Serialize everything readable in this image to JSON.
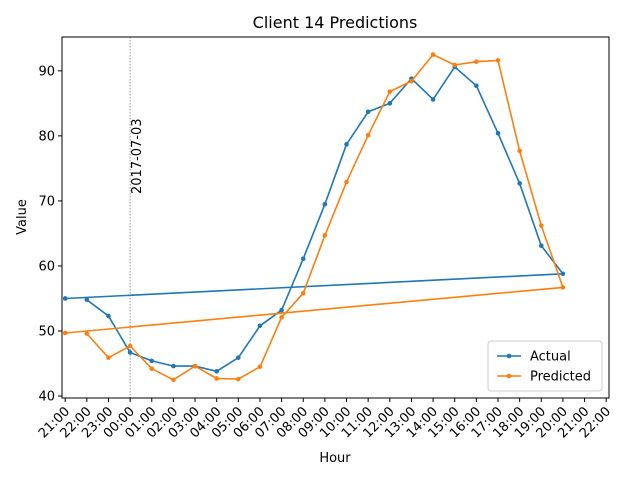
{
  "chart_data": {
    "type": "line",
    "title": "Client 14 Predictions",
    "xlabel": "Hour",
    "ylabel": "Value",
    "ylim": [
      39.7,
      95.2
    ],
    "yticks": [
      40,
      50,
      60,
      70,
      80,
      90
    ],
    "xtick_labels": [
      "21:00",
      "22:00",
      "23:00",
      "00:00",
      "01:00",
      "02:00",
      "03:00",
      "04:00",
      "05:00",
      "06:00",
      "07:00",
      "08:00",
      "09:00",
      "10:00",
      "11:00",
      "12:00",
      "13:00",
      "14:00",
      "15:00",
      "16:00",
      "17:00",
      "18:00",
      "19:00",
      "20:00",
      "21:00",
      "22:00"
    ],
    "x": [
      "22:00",
      "23:00",
      "00:00",
      "01:00",
      "02:00",
      "03:00",
      "04:00",
      "05:00",
      "06:00",
      "07:00",
      "08:00",
      "09:00",
      "10:00",
      "11:00",
      "12:00",
      "13:00",
      "14:00",
      "15:00",
      "16:00",
      "17:00",
      "18:00",
      "19:00",
      "20:00",
      "21:00"
    ],
    "series": [
      {
        "name": "Actual",
        "color": "#1f77b4",
        "values": [
          54.8,
          52.3,
          46.7,
          45.4,
          44.6,
          44.6,
          43.8,
          45.9,
          50.8,
          53.2,
          61.1,
          69.5,
          78.7,
          83.7,
          85.0,
          88.8,
          85.6,
          90.6,
          87.7,
          80.4,
          72.7,
          63.1,
          58.8,
          55.0
        ]
      },
      {
        "name": "Predicted",
        "color": "#ff7f0e",
        "values": [
          49.6,
          45.9,
          47.7,
          44.2,
          42.5,
          44.6,
          42.7,
          42.6,
          44.5,
          52.1,
          55.8,
          64.7,
          72.9,
          80.1,
          86.8,
          88.4,
          92.5,
          90.9,
          91.4,
          91.6,
          77.7,
          66.2,
          56.7,
          49.7
        ]
      }
    ],
    "annotation": {
      "text": "2017-07-03",
      "x": "00:00"
    },
    "legend_position": "lower-right",
    "grid": false
  }
}
